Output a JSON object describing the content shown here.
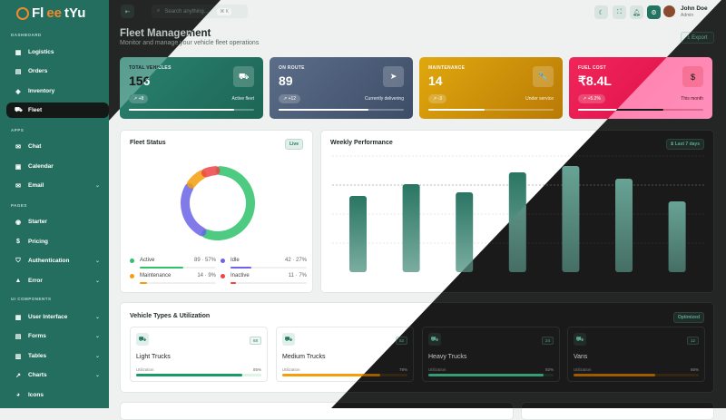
{
  "brand": {
    "name_a": "Fl",
    "name_b": "ee",
    "name_c": "tYu"
  },
  "sidebar": {
    "sections": [
      "DASHBOARD",
      "APPS",
      "PAGES",
      "UI COMPONENTS"
    ],
    "items": [
      {
        "label": "Logistics",
        "icon": "building-icon",
        "glyph": "▦"
      },
      {
        "label": "Orders",
        "icon": "clipboard-icon",
        "glyph": "▤"
      },
      {
        "label": "Inventory",
        "icon": "layers-icon",
        "glyph": "◈"
      },
      {
        "label": "Fleet",
        "icon": "truck-icon",
        "glyph": "⛟"
      },
      {
        "label": "Chat",
        "icon": "chat-icon",
        "glyph": "✉"
      },
      {
        "label": "Calendar",
        "icon": "calendar-icon",
        "glyph": "▣"
      },
      {
        "label": "Email",
        "icon": "inbox-icon",
        "glyph": "✉"
      },
      {
        "label": "Starter",
        "icon": "circle-icon",
        "glyph": "◉"
      },
      {
        "label": "Pricing",
        "icon": "dollar-icon",
        "glyph": "$"
      },
      {
        "label": "Authentication",
        "icon": "shield-icon",
        "glyph": "⛉"
      },
      {
        "label": "Error",
        "icon": "warning-icon",
        "glyph": "▲"
      },
      {
        "label": "User Interface",
        "icon": "grid-icon",
        "glyph": "▦"
      },
      {
        "label": "Forms",
        "icon": "form-icon",
        "glyph": "▤"
      },
      {
        "label": "Tables",
        "icon": "table-icon",
        "glyph": "▥"
      },
      {
        "label": "Charts",
        "icon": "chart-icon",
        "glyph": "↗"
      },
      {
        "label": "Icons",
        "icon": "palette-icon",
        "glyph": "◕"
      }
    ],
    "chevron": "⌄"
  },
  "topbar": {
    "search_placeholder": "Search anything...",
    "shortcut": "⌘ K",
    "user_name": "John Doe",
    "user_role": "Admin"
  },
  "header": {
    "title": "Fleet Management",
    "subtitle": "Monitor and manage your vehicle fleet operations",
    "export_label": "Export"
  },
  "stats": [
    {
      "label": "TOTAL VEHICLES",
      "value": "156",
      "change": "+8",
      "note": "Active fleet",
      "progress": 0.84,
      "glyph": "⛟",
      "color": "#237562"
    },
    {
      "label": "ON ROUTE",
      "value": "89",
      "change": "+12",
      "note": "Currently delivering",
      "progress": 0.72,
      "glyph": "➤",
      "color": "#4a5c78"
    },
    {
      "label": "MAINTENANCE",
      "value": "14",
      "change": "-3",
      "note": "Under service",
      "progress": 0.45,
      "glyph": "🔧",
      "color": "#d19a0c"
    },
    {
      "label": "FUEL COST",
      "value": "₹8.4L",
      "change": "+5.2%",
      "note": "This month",
      "progress": 0.68,
      "glyph": "$",
      "color": "#e8174f"
    }
  ],
  "fleet_status": {
    "title": "Fleet Status",
    "badge": "Live",
    "items": [
      {
        "name": "Active",
        "value": "89 · 57%",
        "pct": 57,
        "color": "#2dc26b"
      },
      {
        "name": "Idle",
        "value": "42 · 27%",
        "pct": 27,
        "color": "#6b63e8"
      },
      {
        "name": "Maintenance",
        "value": "14 · 9%",
        "pct": 9,
        "color": "#f59e0b"
      },
      {
        "name": "Inactive",
        "value": "11 · 7%",
        "pct": 7,
        "color": "#ef4444"
      }
    ]
  },
  "chart_data": {
    "type": "bar",
    "title": "Weekly Performance",
    "badge": "Last 7 days",
    "values": [
      84,
      97,
      88,
      110,
      117,
      103,
      78
    ],
    "grid": true
  },
  "vehicle_types": {
    "title": "Vehicle Types & Utilization",
    "badge": "Optimized",
    "utilization_label": "Utilization",
    "items": [
      {
        "name": "Light Trucks",
        "count": "68",
        "util": "85%",
        "pct": 85,
        "color": "#1a9a68"
      },
      {
        "name": "Medium Trucks",
        "count": "52",
        "util": "78%",
        "pct": 78,
        "color": "#f59e0b"
      },
      {
        "name": "Heavy Trucks",
        "count": "24",
        "util": "92%",
        "pct": 92,
        "color": "#1a9a68"
      },
      {
        "name": "Vans",
        "count": "12",
        "util": "65%",
        "pct": 65,
        "color": "#f59e0b"
      }
    ]
  }
}
